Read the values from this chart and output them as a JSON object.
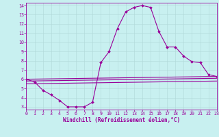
{
  "background_color": "#c8f0f0",
  "line_color": "#990099",
  "grid_color": "#b0d8d8",
  "ylabel_ticks": [
    3,
    4,
    5,
    6,
    7,
    8,
    9,
    10,
    11,
    12,
    13,
    14
  ],
  "xlabel_ticks": [
    0,
    1,
    2,
    3,
    4,
    5,
    6,
    7,
    8,
    9,
    10,
    11,
    12,
    13,
    14,
    15,
    16,
    17,
    18,
    19,
    20,
    21,
    22,
    23
  ],
  "xlabel": "Windchill (Refroidissement éolien,°C)",
  "series": [
    {
      "x": [
        0,
        1,
        2,
        3,
        4,
        5,
        6,
        7,
        8,
        9,
        10,
        11,
        12,
        13,
        14,
        15,
        16,
        17,
        18,
        19,
        20,
        21,
        22,
        23
      ],
      "y": [
        6.0,
        5.7,
        4.8,
        4.3,
        3.7,
        3.0,
        3.0,
        3.0,
        3.5,
        7.8,
        9.0,
        11.5,
        13.3,
        13.8,
        14.0,
        13.8,
        11.2,
        9.5,
        9.5,
        8.5,
        7.9,
        7.8,
        6.5,
        6.3
      ],
      "marker": "D",
      "markersize": 2.0,
      "linewidth": 0.8,
      "with_marker": true
    },
    {
      "x": [
        0,
        23
      ],
      "y": [
        6.0,
        6.3
      ],
      "linewidth": 0.8,
      "with_marker": false
    },
    {
      "x": [
        0,
        23
      ],
      "y": [
        5.8,
        6.1
      ],
      "linewidth": 0.8,
      "with_marker": false
    },
    {
      "x": [
        0,
        23
      ],
      "y": [
        5.5,
        5.8
      ],
      "linewidth": 0.8,
      "with_marker": false
    }
  ],
  "xlim": [
    0,
    23
  ],
  "ylim": [
    2.7,
    14.3
  ],
  "tick_fontsize": 4.8,
  "label_fontsize": 5.5
}
